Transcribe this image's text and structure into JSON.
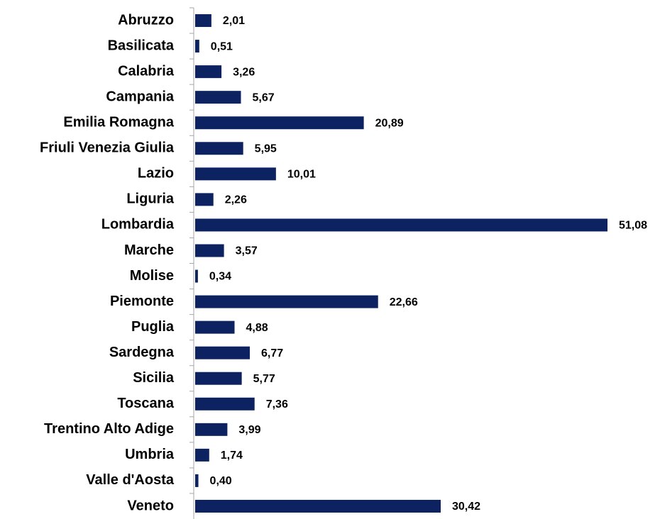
{
  "chart_data": {
    "type": "bar",
    "orientation": "horizontal",
    "categories": [
      "Abruzzo",
      "Basilicata",
      "Calabria",
      "Campania",
      "Emilia Romagna",
      "Friuli Venezia Giulia",
      "Lazio",
      "Liguria",
      "Lombardia",
      "Marche",
      "Molise",
      "Piemonte",
      "Puglia",
      "Sardegna",
      "Sicilia",
      "Toscana",
      "Trentino Alto Adige",
      "Umbria",
      "Valle d'Aosta",
      "Veneto"
    ],
    "values": [
      2.01,
      0.51,
      3.26,
      5.67,
      20.89,
      5.95,
      10.01,
      2.26,
      51.08,
      3.57,
      0.34,
      22.66,
      4.88,
      6.77,
      5.77,
      7.36,
      3.99,
      1.74,
      0.4,
      30.42
    ],
    "value_labels": [
      "2,01",
      "0,51",
      "3,26",
      "5,67",
      "20,89",
      "5,95",
      "10,01",
      "2,26",
      "51,08",
      "3,57",
      "0,34",
      "22,66",
      "4,88",
      "6,77",
      "5,77",
      "7,36",
      "3,99",
      "1,74",
      "0,40",
      "30,42"
    ],
    "color": "#0d2260"
  }
}
